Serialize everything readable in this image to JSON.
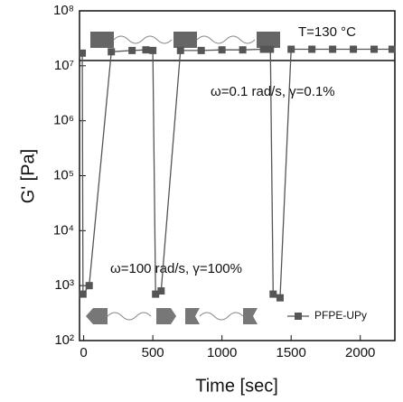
{
  "chart_data": {
    "type": "line",
    "x_label": "Time [sec]",
    "y_label": "G' [Pa]",
    "log_y": true,
    "xlim": [
      -30,
      2250
    ],
    "xticks": [
      0,
      500,
      1000,
      1500,
      2000
    ],
    "ylim": [
      100,
      100000000
    ],
    "yticks": [
      {
        "value": 100,
        "label": "10²"
      },
      {
        "value": 1000,
        "label": "10³"
      },
      {
        "value": 10000,
        "label": "10⁴"
      },
      {
        "value": 100000,
        "label": "10⁵"
      },
      {
        "value": 1000000,
        "label": "10⁶"
      },
      {
        "value": 10000000,
        "label": "10⁷"
      },
      {
        "value": 100000000,
        "label": "10⁸"
      }
    ],
    "x": [
      -10,
      -5,
      40,
      200,
      350,
      450,
      500,
      520,
      560,
      700,
      850,
      1000,
      1150,
      1300,
      1350,
      1370,
      1420,
      1500,
      1650,
      1800,
      1950,
      2100,
      2230
    ],
    "series": [
      {
        "name": "PFPE-UPy",
        "color": "#555555",
        "values": [
          17000000,
          700,
          1000,
          18000000,
          19000000,
          19500000,
          19000000,
          700,
          800,
          19000000,
          19000000,
          19500000,
          19500000,
          20000000,
          20000000,
          700,
          600,
          20000000,
          20000000,
          20000000,
          20000000,
          20000000,
          20000000
        ]
      }
    ],
    "annotations": [
      "T=130 °C",
      "ω=0.1 rad/s, γ=0.1%",
      "ω=100 rad/s, γ=100%"
    ],
    "legend": "lower right"
  }
}
